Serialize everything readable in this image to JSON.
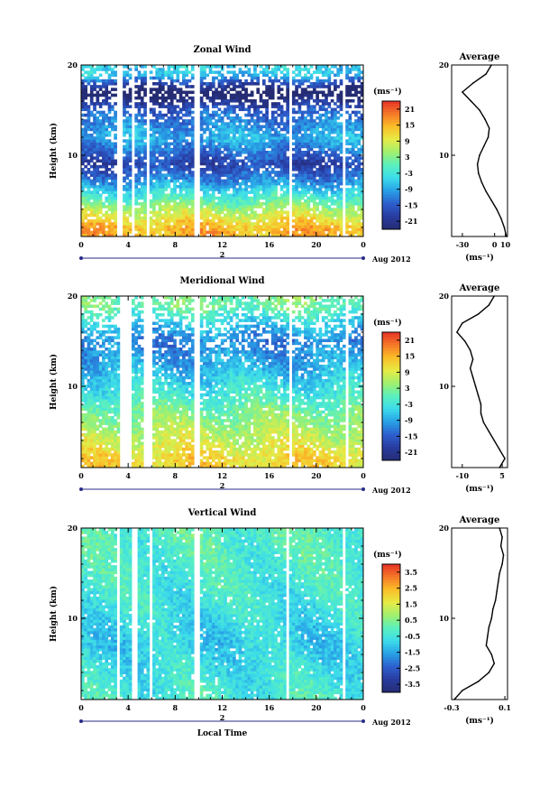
{
  "panel_titles": {
    "zonal": "Zonal Wind",
    "meridional": "Meridional Wind",
    "vertical": "Vertical Wind"
  },
  "x_axis_label": "Local Time",
  "y_axis_label": "Height (km)",
  "date_label": "Aug 2012",
  "day_label": "2",
  "unit_label": "(ms⁻¹)",
  "avg_title": "Average",
  "chart_data": [
    {
      "type": "heatmap",
      "title": "Zonal Wind",
      "xlabel": "",
      "ylabel": "Height (km)",
      "xlim": [
        0,
        24
      ],
      "ylim": [
        1,
        20
      ],
      "x_ticks": [
        "0",
        "4",
        "8",
        "12",
        "16",
        "20",
        "0"
      ],
      "y_ticks": [
        "10",
        "20"
      ],
      "colorbar": {
        "unit": "(ms⁻¹)",
        "ticks": [
          "21",
          "15",
          "9",
          "3",
          "-3",
          "-9",
          "-15",
          "-21"
        ],
        "range": [
          -24,
          24
        ]
      },
      "gaps_hours": [
        [
          3.0,
          3.6
        ],
        [
          4.4,
          4.6
        ],
        [
          5.5,
          5.9
        ],
        [
          9.6,
          10.0
        ],
        [
          17.6,
          18.0
        ],
        [
          22.3,
          22.6
        ]
      ],
      "profile_samples": [
        {
          "height_km": 2,
          "value": 15
        },
        {
          "height_km": 4,
          "value": 6
        },
        {
          "height_km": 7,
          "value": -10
        },
        {
          "height_km": 9,
          "value": -18
        },
        {
          "height_km": 12,
          "value": -8
        },
        {
          "height_km": 15,
          "value": -15
        },
        {
          "height_km": 17,
          "value": -28
        },
        {
          "height_km": 19,
          "value": -6
        }
      ],
      "average_profile": {
        "title": "Average",
        "xlabel": "(ms⁻¹)",
        "x_ticks": [
          "-30",
          "0",
          "10"
        ],
        "x_tick_values": [
          -30,
          0,
          10
        ],
        "xlim": [
          -40,
          12
        ],
        "heights": [
          1,
          2,
          3,
          4,
          5,
          6,
          7,
          8,
          9,
          10,
          11,
          12,
          13,
          14,
          15,
          16,
          17,
          18,
          19,
          20
        ],
        "values": [
          11,
          9,
          6,
          2,
          -3,
          -8,
          -12,
          -15,
          -16,
          -14,
          -10,
          -6,
          -5,
          -9,
          -14,
          -22,
          -30,
          -20,
          -8,
          -3
        ]
      }
    },
    {
      "type": "heatmap",
      "title": "Meridional Wind",
      "xlabel": "",
      "ylabel": "Height (km)",
      "xlim": [
        0,
        24
      ],
      "ylim": [
        1,
        20
      ],
      "x_ticks": [
        "0",
        "4",
        "8",
        "12",
        "16",
        "20",
        "0"
      ],
      "y_ticks": [
        "10",
        "20"
      ],
      "colorbar": {
        "unit": "(ms⁻¹)",
        "ticks": [
          "21",
          "15",
          "9",
          "3",
          "-3",
          "-9",
          "-15",
          "-21"
        ],
        "range": [
          -24,
          24
        ]
      },
      "gaps_hours": [
        [
          3.2,
          4.2
        ],
        [
          5.4,
          6.0
        ],
        [
          9.6,
          10.0
        ],
        [
          17.6,
          18.0
        ],
        [
          22.4,
          22.7
        ]
      ],
      "profile_samples": [
        {
          "height_km": 2,
          "value": 12
        },
        {
          "height_km": 4,
          "value": 8
        },
        {
          "height_km": 7,
          "value": 3
        },
        {
          "height_km": 9,
          "value": -2
        },
        {
          "height_km": 12,
          "value": -8
        },
        {
          "height_km": 15,
          "value": -12
        },
        {
          "height_km": 17,
          "value": -6
        },
        {
          "height_km": 19,
          "value": 2
        }
      ],
      "average_profile": {
        "title": "Average",
        "xlabel": "(ms⁻¹)",
        "x_ticks": [
          "-10",
          "5"
        ],
        "x_tick_values": [
          -10,
          5
        ],
        "xlim": [
          -14,
          7
        ],
        "heights": [
          1,
          2,
          3,
          4,
          5,
          6,
          7,
          8,
          9,
          10,
          11,
          12,
          13,
          14,
          15,
          16,
          17,
          18,
          19,
          20
        ],
        "values": [
          4,
          6,
          4,
          2,
          0,
          -2,
          -3,
          -3,
          -4,
          -5,
          -6,
          -7,
          -6,
          -7,
          -9,
          -12,
          -10,
          -4,
          0,
          2
        ]
      }
    },
    {
      "type": "heatmap",
      "title": "Vertical Wind",
      "xlabel": "Local Time",
      "ylabel": "Height (km)",
      "xlim": [
        0,
        24
      ],
      "ylim": [
        1,
        20
      ],
      "x_ticks": [
        "0",
        "4",
        "8",
        "12",
        "16",
        "20",
        "0"
      ],
      "y_ticks": [
        "10",
        "20"
      ],
      "colorbar": {
        "unit": "(ms⁻¹)",
        "ticks": [
          "3.5",
          "2.5",
          "1.5",
          "0.5",
          "-0.5",
          "-1.5",
          "-2.5",
          "-3.5"
        ],
        "range": [
          -4,
          4
        ]
      },
      "gaps_hours": [
        [
          3.0,
          3.4
        ],
        [
          4.4,
          4.7
        ],
        [
          5.7,
          6.0
        ],
        [
          9.6,
          10.0
        ],
        [
          17.4,
          17.8
        ],
        [
          22.2,
          22.5
        ]
      ],
      "profile_samples": [
        {
          "height_km": 2,
          "value": -0.4
        },
        {
          "height_km": 4,
          "value": -0.6
        },
        {
          "height_km": 7,
          "value": -0.9
        },
        {
          "height_km": 9,
          "value": -0.8
        },
        {
          "height_km": 12,
          "value": -0.5
        },
        {
          "height_km": 15,
          "value": -0.3
        },
        {
          "height_km": 17,
          "value": -0.2
        },
        {
          "height_km": 19,
          "value": -0.1
        }
      ],
      "average_profile": {
        "title": "Average",
        "xlabel": "(ms⁻¹)",
        "x_ticks": [
          "-0.3",
          "0.1"
        ],
        "x_tick_values": [
          -0.3,
          0.1
        ],
        "xlim": [
          -0.3,
          0.12
        ],
        "heights": [
          1,
          2,
          3,
          4,
          5,
          6,
          7,
          8,
          9,
          10,
          11,
          12,
          13,
          14,
          15,
          16,
          17,
          18,
          19,
          20
        ],
        "values": [
          -0.28,
          -0.22,
          -0.1,
          -0.02,
          0.02,
          0.0,
          -0.04,
          -0.03,
          -0.02,
          0.0,
          0.01,
          0.03,
          0.04,
          0.05,
          0.06,
          0.08,
          0.09,
          0.07,
          0.08,
          0.06
        ]
      }
    }
  ]
}
